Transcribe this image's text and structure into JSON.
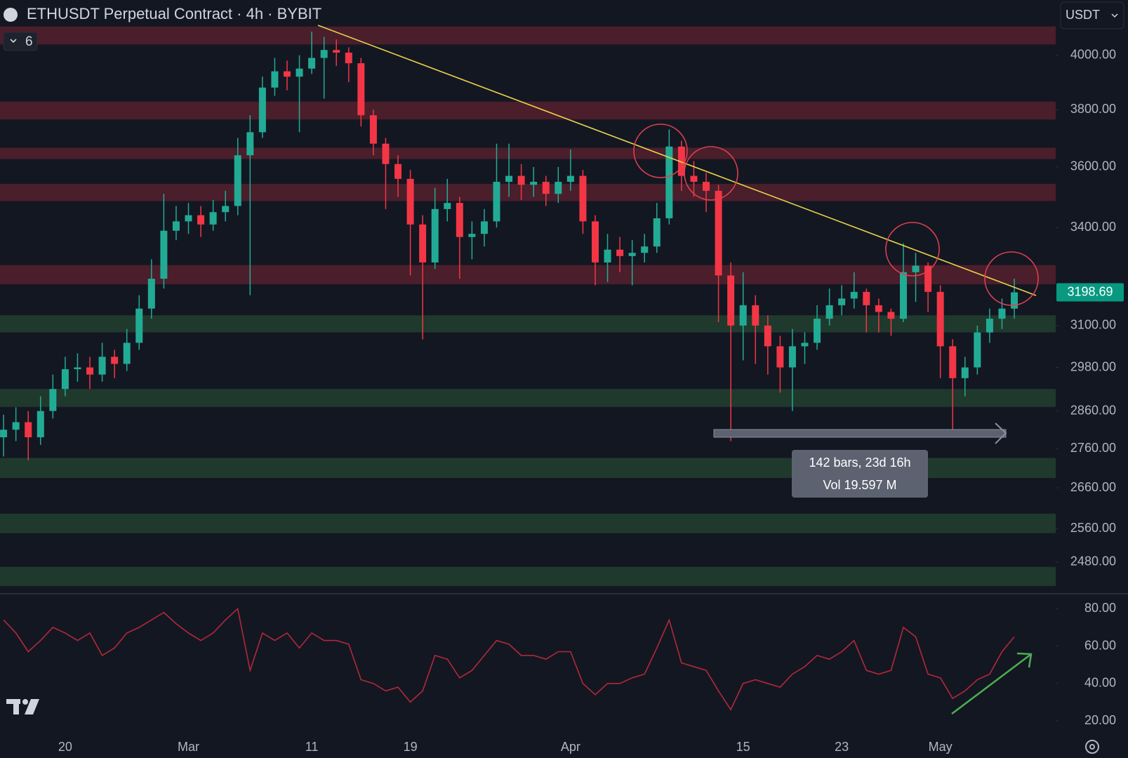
{
  "header": {
    "title": "ETHUSDT Perpetual Contract · 4h · BYBIT",
    "indicator_count": 6,
    "currency": "USDT"
  },
  "measure": {
    "line1": "142 bars, 23d 16h",
    "line2": "Vol 19.597 M"
  },
  "chart_data": {
    "type": "candlestick",
    "log_scale": true,
    "up_color": "#22ab94",
    "down_color": "#f23645",
    "categories": [
      null,
      null,
      null,
      null,
      null,
      "20",
      null,
      null,
      null,
      null,
      null,
      null,
      null,
      null,
      null,
      "Mar",
      null,
      null,
      null,
      null,
      null,
      null,
      null,
      null,
      null,
      "11",
      null,
      null,
      null,
      null,
      null,
      null,
      null,
      "19",
      null,
      null,
      null,
      null,
      null,
      null,
      null,
      null,
      null,
      null,
      null,
      null,
      "Apr",
      null,
      null,
      null,
      null,
      null,
      null,
      null,
      null,
      null,
      null,
      null,
      null,
      null,
      "15",
      null,
      null,
      null,
      null,
      null,
      null,
      null,
      "23",
      null,
      null,
      null,
      null,
      null,
      null,
      null,
      "May",
      null,
      null,
      null,
      null,
      null,
      null
    ],
    "open": [
      2790,
      2810,
      2830,
      2790,
      2860,
      2920,
      2975,
      2980,
      2960,
      3010,
      2990,
      3050,
      3150,
      3240,
      3390,
      3420,
      3440,
      3410,
      3450,
      3470,
      3640,
      3720,
      3880,
      3940,
      3920,
      3950,
      3990,
      4020,
      4010,
      3970,
      3780,
      3680,
      3610,
      3560,
      3410,
      3290,
      3460,
      3480,
      3370,
      3380,
      3420,
      3550,
      3570,
      3540,
      3550,
      3510,
      3550,
      3570,
      3420,
      3290,
      3330,
      3310,
      3320,
      3340,
      3430,
      3670,
      3570,
      3550,
      3520,
      3250,
      3100,
      3160,
      3100,
      3040,
      2980,
      3040,
      3050,
      3120,
      3160,
      3180,
      3200,
      3160,
      3140,
      3120,
      3260,
      3280,
      3200,
      3040,
      2950,
      2980,
      3080,
      3120,
      3150
    ],
    "high": [
      2850,
      2870,
      2860,
      2900,
      2960,
      3010,
      3020,
      3010,
      3050,
      3030,
      3090,
      3190,
      3300,
      3510,
      3470,
      3480,
      3470,
      3490,
      3520,
      3700,
      3780,
      3920,
      3990,
      3980,
      4000,
      4090,
      4070,
      4060,
      4030,
      3990,
      3800,
      3700,
      3640,
      3590,
      3440,
      3530,
      3560,
      3500,
      3420,
      3460,
      3680,
      3680,
      3610,
      3600,
      3570,
      3600,
      3660,
      3590,
      3440,
      3380,
      3370,
      3360,
      3380,
      3480,
      3730,
      3690,
      3620,
      3580,
      3540,
      3290,
      3260,
      3190,
      3130,
      3070,
      3090,
      3080,
      3160,
      3210,
      3220,
      3260,
      3210,
      3180,
      3150,
      3350,
      3320,
      3290,
      3220,
      3060,
      3010,
      3100,
      3150,
      3180,
      3240
    ],
    "low": [
      2740,
      2780,
      2730,
      2770,
      2840,
      2900,
      2940,
      2920,
      2940,
      2950,
      2970,
      3030,
      3120,
      3210,
      3360,
      3380,
      3370,
      3390,
      3420,
      3440,
      3190,
      3700,
      3850,
      3870,
      3720,
      3930,
      3840,
      3960,
      3900,
      3740,
      3640,
      3460,
      3500,
      3250,
      3060,
      3270,
      3420,
      3240,
      3300,
      3340,
      3400,
      3500,
      3490,
      3500,
      3470,
      3480,
      3520,
      3380,
      3220,
      3230,
      3260,
      3220,
      3290,
      3320,
      3410,
      3520,
      3500,
      3450,
      3110,
      2780,
      3000,
      2990,
      2960,
      2910,
      2860,
      2990,
      3030,
      3100,
      3130,
      3150,
      3080,
      3080,
      3070,
      3110,
      3170,
      3140,
      2950,
      2810,
      2900,
      2960,
      3050,
      3090,
      3120
    ],
    "close": [
      2810,
      2830,
      2790,
      2860,
      2920,
      2975,
      2980,
      2960,
      3010,
      2990,
      3050,
      3150,
      3240,
      3390,
      3420,
      3440,
      3410,
      3450,
      3470,
      3640,
      3720,
      3880,
      3940,
      3920,
      3950,
      3990,
      4020,
      4010,
      3970,
      3780,
      3680,
      3610,
      3560,
      3410,
      3290,
      3460,
      3480,
      3370,
      3380,
      3420,
      3550,
      3570,
      3540,
      3550,
      3510,
      3550,
      3570,
      3420,
      3290,
      3330,
      3310,
      3320,
      3340,
      3430,
      3670,
      3570,
      3550,
      3520,
      3250,
      3100,
      3160,
      3100,
      3040,
      2980,
      3040,
      3050,
      3120,
      3160,
      3180,
      3200,
      3160,
      3140,
      3120,
      3260,
      3280,
      3200,
      3040,
      2950,
      2980,
      3080,
      3120,
      3150,
      3198.69
    ],
    "ylim": [
      2420,
      4214
    ],
    "yticks": [
      {
        "value": 4000,
        "label": "4000.00"
      },
      {
        "value": 3800,
        "label": "3800.00"
      },
      {
        "value": 3600,
        "label": "3600.00"
      },
      {
        "value": 3400,
        "label": "3400.00"
      },
      {
        "value": 3100,
        "label": "3100.00"
      },
      {
        "value": 2980,
        "label": "2980.00"
      },
      {
        "value": 2860,
        "label": "2860.00"
      },
      {
        "value": 2760,
        "label": "2760.00"
      },
      {
        "value": 2660,
        "label": "2660.00"
      },
      {
        "value": 2560,
        "label": "2560.00"
      },
      {
        "value": 2480,
        "label": "2480.00"
      }
    ],
    "zones": [
      {
        "low": 4041,
        "high": 4110,
        "color": "#4a1e2b"
      },
      {
        "low": 3765,
        "high": 3829,
        "color": "#4a1e2b"
      },
      {
        "low": 3627,
        "high": 3666,
        "color": "#4a1e2b"
      },
      {
        "low": 3486,
        "high": 3543,
        "color": "#4a1e2b"
      },
      {
        "low": 3223,
        "high": 3282,
        "color": "#4a1e2b"
      },
      {
        "low": 3080,
        "high": 3130,
        "color": "#1f3a2c"
      },
      {
        "low": 2871,
        "high": 2920,
        "color": "#1f3a2c"
      },
      {
        "low": 2685,
        "high": 2736,
        "color": "#1f3a2c"
      },
      {
        "low": 2549,
        "high": 2596,
        "color": "#1f3a2c"
      },
      {
        "low": 2425,
        "high": 2469,
        "color": "#1f3a2c"
      }
    ],
    "rsi": {
      "color": "#b2283a",
      "values": [
        74,
        67,
        57,
        63,
        70,
        67,
        63,
        67,
        55,
        59,
        67,
        70,
        74,
        78,
        72,
        67,
        63,
        67,
        74,
        80,
        47,
        67,
        63,
        67,
        59,
        67,
        63,
        63,
        61,
        42,
        40,
        36,
        38,
        30,
        36,
        55,
        53,
        43,
        47,
        55,
        63,
        61,
        55,
        55,
        53,
        57,
        57,
        40,
        34,
        40,
        40,
        43,
        45,
        59,
        74,
        51,
        49,
        47,
        36,
        26,
        40,
        42,
        40,
        38,
        45,
        49,
        55,
        53,
        57,
        63,
        47,
        45,
        47,
        70,
        65,
        45,
        43,
        32,
        36,
        42,
        45,
        57,
        65
      ],
      "ylim": [
        11,
        88
      ],
      "yticks": [
        {
          "value": 80,
          "label": "80.00"
        },
        {
          "value": 60,
          "label": "60.00"
        },
        {
          "value": 40,
          "label": "40.00"
        },
        {
          "value": 20,
          "label": "20.00"
        }
      ]
    }
  }
}
